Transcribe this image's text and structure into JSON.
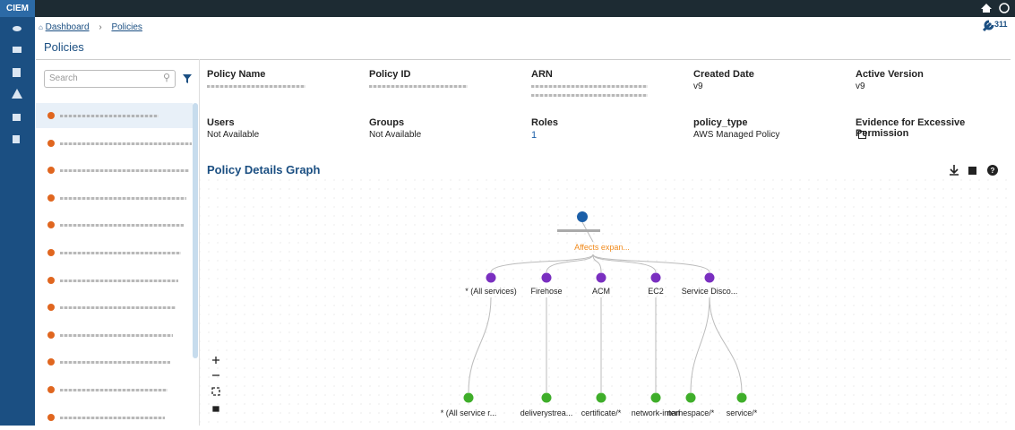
{
  "app": {
    "name": "CIEM"
  },
  "header": {
    "breadcrumb": [
      "Dashboard",
      "Policies"
    ],
    "title": "Policies",
    "badge": "311"
  },
  "list_panel": {
    "search_placeholder": "Search"
  },
  "details": {
    "fields": [
      {
        "label": "Policy Name"
      },
      {
        "label": "Policy ID"
      },
      {
        "label": "ARN"
      },
      {
        "label": "Created Date",
        "value": "v9"
      },
      {
        "label": "Active Version",
        "value": "v9"
      },
      {
        "label": "Users",
        "value": "Not Available"
      },
      {
        "label": "Groups",
        "value": "Not Available"
      },
      {
        "label": "Roles",
        "value": "1"
      },
      {
        "label": "policy_type",
        "value": "AWS Managed Policy"
      },
      {
        "label": "Evidence for Excessive Permission"
      }
    ]
  },
  "graph": {
    "title": "Policy Details Graph",
    "edge_label": "Affects expan...",
    "services": [
      "* (All services)",
      "Firehose",
      "ACM",
      "EC2",
      "Service Disco..."
    ],
    "resources": [
      "* (All service r...",
      "deliverystrea...",
      "certificate/*",
      "network-interf",
      "namespace/*",
      "service/*"
    ]
  }
}
